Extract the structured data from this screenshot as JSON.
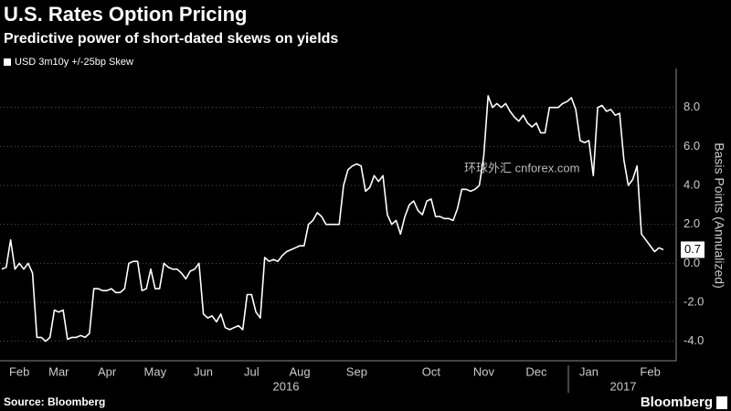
{
  "chart_data": {
    "type": "line",
    "title": "U.S. Rates Option Pricing",
    "subtitle": "Predictive power of short-dated skews on yields",
    "y_axis_label": "Basis Points (Annualized)",
    "source": "Source: Bloomberg",
    "brand": "Bloomberg",
    "watermark": "环球外汇 cnforex.com",
    "year_labels": [
      "2016",
      "2017"
    ],
    "categories": [
      null,
      null,
      null,
      null,
      "Feb",
      null,
      null,
      null,
      null,
      null,
      null,
      null,
      null,
      "Mar",
      null,
      null,
      null,
      null,
      null,
      null,
      null,
      null,
      null,
      null,
      "Apr",
      null,
      null,
      null,
      null,
      null,
      null,
      null,
      null,
      null,
      null,
      "May",
      null,
      null,
      null,
      null,
      null,
      null,
      null,
      null,
      null,
      null,
      "Jun",
      null,
      null,
      null,
      null,
      null,
      null,
      null,
      null,
      null,
      null,
      "Jul",
      null,
      null,
      null,
      null,
      null,
      null,
      null,
      null,
      null,
      null,
      "Aug",
      null,
      null,
      null,
      null,
      null,
      null,
      null,
      null,
      null,
      null,
      null,
      null,
      "Sep",
      null,
      null,
      null,
      null,
      null,
      null,
      null,
      null,
      null,
      null,
      null,
      null,
      null,
      null,
      null,
      null,
      "Oct",
      null,
      null,
      null,
      null,
      null,
      null,
      null,
      null,
      null,
      null,
      null,
      "Nov",
      null,
      null,
      null,
      null,
      null,
      null,
      null,
      null,
      null,
      null,
      null,
      "Dec",
      null,
      null,
      null,
      null,
      null,
      null,
      null,
      null,
      null,
      null,
      null,
      "Jan",
      null,
      null,
      null,
      null,
      null,
      null,
      null,
      null,
      null,
      null,
      null,
      null,
      null,
      "Feb",
      null,
      null,
      null
    ],
    "series": [
      {
        "name": "USD 3m10y +/-25bp Skew",
        "color": "#ffffff",
        "values": [
          -0.3,
          -0.2,
          1.2,
          -0.3,
          0.0,
          -0.3,
          0.0,
          -0.5,
          -3.8,
          -3.8,
          -4.0,
          -3.8,
          -2.4,
          -2.5,
          -2.4,
          -3.9,
          -3.8,
          -3.8,
          -3.7,
          -3.8,
          -3.6,
          -1.3,
          -1.3,
          -1.4,
          -1.4,
          -1.3,
          -1.5,
          -1.5,
          -1.3,
          0.0,
          0.1,
          0.1,
          -1.4,
          -1.3,
          -0.3,
          -1.3,
          -1.3,
          0.0,
          -0.2,
          -0.3,
          -0.3,
          -0.5,
          -0.8,
          -0.4,
          -0.3,
          0.0,
          -2.6,
          -2.8,
          -2.7,
          -3.0,
          -2.6,
          -3.3,
          -3.4,
          -3.3,
          -3.2,
          -3.4,
          -1.6,
          -1.6,
          -2.5,
          -2.8,
          0.3,
          0.1,
          0.2,
          0.1,
          0.4,
          0.6,
          0.7,
          0.8,
          0.9,
          0.9,
          2.0,
          2.2,
          2.6,
          2.4,
          2.0,
          2.0,
          2.0,
          2.0,
          4.0,
          4.8,
          5.0,
          5.1,
          5.0,
          3.7,
          3.9,
          4.5,
          4.2,
          4.5,
          2.5,
          2.0,
          2.2,
          1.5,
          2.4,
          3.0,
          3.2,
          2.7,
          2.5,
          3.2,
          3.3,
          2.4,
          2.4,
          2.3,
          2.3,
          2.2,
          2.8,
          3.8,
          3.8,
          3.7,
          3.8,
          4.0,
          5.5,
          8.6,
          8.0,
          8.2,
          8.0,
          8.2,
          7.8,
          7.5,
          7.3,
          7.6,
          7.2,
          7.0,
          7.2,
          6.7,
          6.7,
          8.0,
          8.0,
          8.0,
          8.2,
          8.3,
          8.5,
          7.9,
          6.3,
          6.2,
          6.3,
          4.5,
          8.0,
          8.1,
          7.8,
          7.9,
          7.6,
          7.7,
          5.3,
          4.0,
          4.3,
          5.0,
          1.5,
          1.2,
          0.9,
          0.6,
          0.8,
          0.7
        ]
      }
    ],
    "ylim": [
      -5,
      10
    ],
    "yticks": [
      {
        "value": -4,
        "label": "-4.0"
      },
      {
        "value": -2,
        "label": "-2.0"
      },
      {
        "value": 0,
        "label": "0.0"
      },
      {
        "value": 2,
        "label": "2.0"
      },
      {
        "value": 4,
        "label": "4.0"
      },
      {
        "value": 6,
        "label": "6.0"
      },
      {
        "value": 8,
        "label": "8.0"
      }
    ],
    "grid": true,
    "legend": "top-left"
  }
}
